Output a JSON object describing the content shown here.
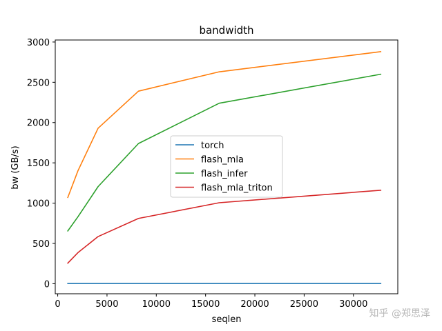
{
  "chart_data": {
    "type": "line",
    "title": "bandwidth",
    "xlabel": "seqlen",
    "ylabel": "bw (GB/s)",
    "xlim": [
      -250,
      34500
    ],
    "ylim": [
      -125,
      3025
    ],
    "xticks": [
      0,
      5000,
      10000,
      15000,
      20000,
      25000,
      30000
    ],
    "yticks": [
      0,
      500,
      1000,
      1500,
      2000,
      2500,
      3000
    ],
    "grid": false,
    "legend_position": "center",
    "x": [
      1024,
      2048,
      4096,
      8192,
      16384,
      32768
    ],
    "series": [
      {
        "name": "torch",
        "color": "#1f77b4",
        "values": [
          3,
          3,
          3,
          3,
          3,
          3
        ]
      },
      {
        "name": "flash_mla",
        "color": "#ff7f0e",
        "values": [
          1070,
          1400,
          1930,
          2390,
          2630,
          2880
        ]
      },
      {
        "name": "flash_infer",
        "color": "#2ca02c",
        "values": [
          655,
          830,
          1205,
          1740,
          2240,
          2600
        ]
      },
      {
        "name": "flash_mla_triton",
        "color": "#d62728",
        "values": [
          255,
          385,
          585,
          810,
          1005,
          1160
        ]
      }
    ]
  },
  "watermark": {
    "text": "知乎 @郑思泽"
  }
}
